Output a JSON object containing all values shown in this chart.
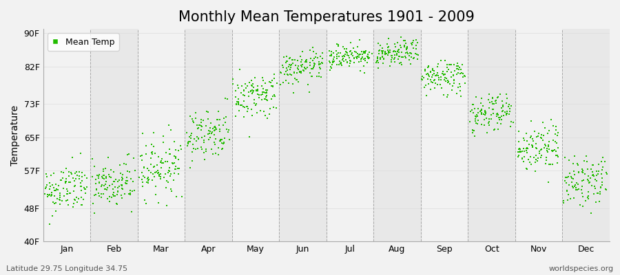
{
  "title": "Monthly Mean Temperatures 1901 - 2009",
  "ylabel": "Temperature",
  "xlabel_labels": [
    "Jan",
    "Feb",
    "Mar",
    "Apr",
    "May",
    "Jun",
    "Jul",
    "Aug",
    "Sep",
    "Oct",
    "Nov",
    "Dec"
  ],
  "ytick_labels": [
    "40F",
    "48F",
    "57F",
    "65F",
    "73F",
    "82F",
    "90F"
  ],
  "ytick_values": [
    40,
    48,
    57,
    65,
    73,
    82,
    90
  ],
  "ylim": [
    40,
    91
  ],
  "xlim": [
    0,
    12
  ],
  "dot_color": "#22bb00",
  "bg_color": "#f2f2f2",
  "plot_bg_alt": "#e8e8e8",
  "plot_bg_main": "#f2f2f2",
  "legend_label": "Mean Temp",
  "footer_left": "Latitude 29.75 Longitude 34.75",
  "footer_right": "worldspecies.org",
  "title_fontsize": 15,
  "label_fontsize": 10,
  "tick_fontsize": 9,
  "num_years": 109,
  "monthly_means": [
    52.5,
    53.5,
    58.0,
    66.0,
    75.0,
    81.5,
    84.5,
    85.0,
    79.5,
    71.0,
    62.5,
    54.5
  ],
  "monthly_stds": [
    3.0,
    3.2,
    3.5,
    3.0,
    2.8,
    2.0,
    1.5,
    1.5,
    2.2,
    2.5,
    3.0,
    3.0
  ]
}
